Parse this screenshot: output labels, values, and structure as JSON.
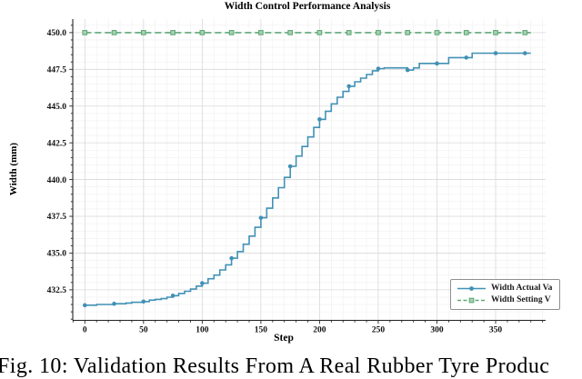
{
  "figure": {
    "caption": "Fig. 10: Validation Results From A Real Rubber Tyre Produc"
  },
  "style_colors": {
    "grid_major": "#d9d9d9",
    "grid_minor": "#efefef",
    "spine": "#262626",
    "tick_text": "#111111",
    "legend_border": "#8f8f8f"
  },
  "chart_data": {
    "type": "line",
    "title": "Width Control Performance Analysis",
    "xlabel": "Step",
    "ylabel": "Width (mm)",
    "xlim": [
      -10.3,
      392.6
    ],
    "ylim": [
      430.42,
      450.92
    ],
    "xticks": [
      0,
      50,
      100,
      150,
      200,
      250,
      300,
      350
    ],
    "xtick_labels": [
      "0",
      "50",
      "100",
      "150",
      "200",
      "250",
      "300",
      "350"
    ],
    "yticks": [
      432.5,
      435.0,
      437.5,
      440.0,
      442.5,
      445.0,
      447.5,
      450.0
    ],
    "ytick_labels": [
      "432.5",
      "435.0",
      "437.5",
      "440.0",
      "442.5",
      "445.0",
      "447.5",
      "450.0"
    ],
    "minor_x_step": 10,
    "minor_y_step": 0.5,
    "grid": true,
    "legend_position": "lower right",
    "series": [
      {
        "name": "Width Actual Va",
        "color": "#4191b5",
        "line_style": "solid",
        "marker": "circle",
        "interpolation": "step-after",
        "marker_xs": [
          0,
          25,
          50,
          75,
          100,
          125,
          150,
          175,
          200,
          225,
          250,
          275,
          300,
          325,
          350,
          375
        ],
        "points": [
          [
            0,
            431.45
          ],
          [
            5,
            431.45
          ],
          [
            10,
            431.5
          ],
          [
            15,
            431.5
          ],
          [
            20,
            431.5
          ],
          [
            25,
            431.55
          ],
          [
            30,
            431.55
          ],
          [
            35,
            431.6
          ],
          [
            40,
            431.65
          ],
          [
            45,
            431.65
          ],
          [
            50,
            431.7
          ],
          [
            55,
            431.8
          ],
          [
            60,
            431.85
          ],
          [
            65,
            431.9
          ],
          [
            70,
            432.0
          ],
          [
            75,
            432.1
          ],
          [
            80,
            432.25
          ],
          [
            85,
            432.4
          ],
          [
            90,
            432.55
          ],
          [
            95,
            432.75
          ],
          [
            100,
            432.95
          ],
          [
            105,
            433.25
          ],
          [
            110,
            433.5
          ],
          [
            115,
            433.85
          ],
          [
            120,
            434.2
          ],
          [
            125,
            434.65
          ],
          [
            130,
            435.1
          ],
          [
            135,
            435.6
          ],
          [
            140,
            436.15
          ],
          [
            145,
            436.75
          ],
          [
            150,
            437.4
          ],
          [
            155,
            438.05
          ],
          [
            160,
            438.75
          ],
          [
            165,
            439.45
          ],
          [
            170,
            440.15
          ],
          [
            175,
            440.9
          ],
          [
            180,
            441.6
          ],
          [
            185,
            442.25
          ],
          [
            190,
            442.9
          ],
          [
            195,
            443.55
          ],
          [
            200,
            444.1
          ],
          [
            205,
            444.65
          ],
          [
            210,
            445.15
          ],
          [
            215,
            445.6
          ],
          [
            220,
            446.0
          ],
          [
            225,
            446.35
          ],
          [
            230,
            446.65
          ],
          [
            235,
            446.9
          ],
          [
            240,
            447.15
          ],
          [
            245,
            447.4
          ],
          [
            250,
            447.55
          ],
          [
            255,
            447.6
          ],
          [
            260,
            447.6
          ],
          [
            265,
            447.6
          ],
          [
            270,
            447.6
          ],
          [
            275,
            447.45
          ],
          [
            280,
            447.6
          ],
          [
            285,
            447.9
          ],
          [
            290,
            447.9
          ],
          [
            295,
            447.9
          ],
          [
            300,
            447.9
          ],
          [
            305,
            447.9
          ],
          [
            310,
            448.3
          ],
          [
            315,
            448.3
          ],
          [
            320,
            448.3
          ],
          [
            325,
            448.3
          ],
          [
            330,
            448.6
          ],
          [
            335,
            448.6
          ],
          [
            340,
            448.6
          ],
          [
            345,
            448.6
          ],
          [
            350,
            448.6
          ],
          [
            355,
            448.6
          ],
          [
            360,
            448.6
          ],
          [
            365,
            448.6
          ],
          [
            370,
            448.6
          ],
          [
            375,
            448.6
          ],
          [
            380,
            448.6
          ]
        ]
      },
      {
        "name": "Width Setting V",
        "color": "#5fa878",
        "marker_fill": "#a8d3b3",
        "line_style": "dashed",
        "marker": "square",
        "interpolation": "linear",
        "marker_xs": [
          0,
          25,
          50,
          75,
          100,
          125,
          150,
          175,
          200,
          225,
          250,
          275,
          300,
          325,
          350,
          375
        ],
        "points": [
          [
            0,
            450.0
          ],
          [
            380,
            450.0
          ]
        ]
      }
    ]
  }
}
